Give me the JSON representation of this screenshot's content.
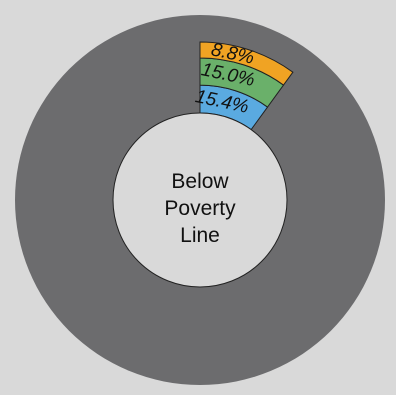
{
  "chart_data": {
    "type": "pie",
    "variant": "radial-sector",
    "center_label_lines": [
      "Below",
      "Poverty",
      "Line"
    ],
    "background_color": "#d9d9d9",
    "full_ring_color": "#6c6c6e",
    "inner_circle_color": "#d9d9d9",
    "sector_start_angle_deg": 0,
    "sector_span_deg": 36,
    "categories": [
      "15.4%",
      "15.0%",
      "8.8%"
    ],
    "values": [
      15.4,
      15.0,
      8.8
    ],
    "series": [
      {
        "label": "15.4%",
        "value": 15.4,
        "color": "#5aaae0"
      },
      {
        "label": "15.0%",
        "value": 15.0,
        "color": "#6ab06a"
      },
      {
        "label": "8.8%",
        "value": 8.8,
        "color": "#f0a323"
      }
    ]
  }
}
